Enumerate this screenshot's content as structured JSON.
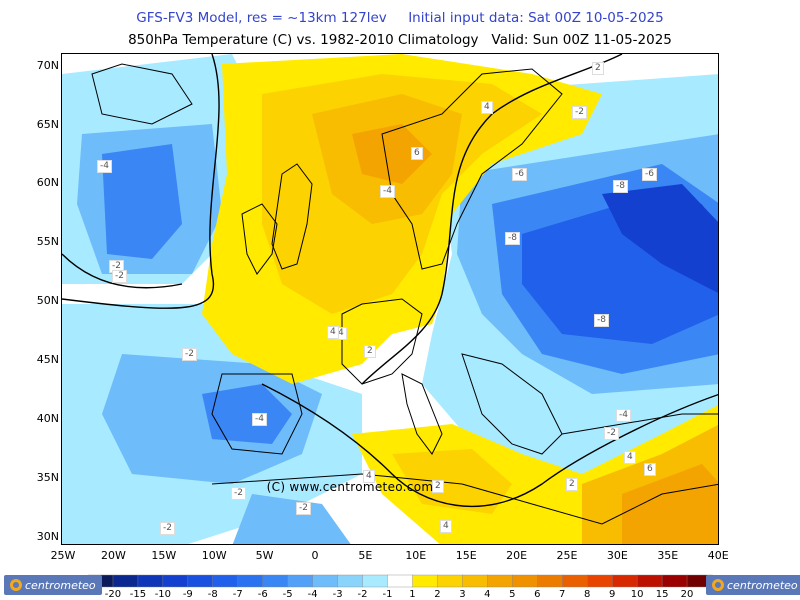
{
  "header": {
    "line1": "GFS-FV3 Model, res = ~13km 127lev     Initial input data: Sat 00Z 10-05-2025",
    "line2": "850hPa Temperature (C) vs. 1982-2010 Climatology   Valid: Sun 00Z 11-05-2025"
  },
  "axes": {
    "lat_labels": [
      "70N",
      "65N",
      "60N",
      "55N",
      "50N",
      "45N",
      "40N",
      "35N",
      "30N"
    ],
    "lon_labels": [
      "25W",
      "20W",
      "15W",
      "10W",
      "5W",
      "0",
      "5E",
      "10E",
      "15E",
      "20E",
      "25E",
      "30E",
      "35E",
      "40E"
    ]
  },
  "copyright": "(C) www.centrometeo.com",
  "contour_labels": [
    "-4",
    "-2",
    "4",
    "6",
    "-6",
    "-8",
    "-6",
    "-4",
    "-2",
    "4",
    "2",
    "-8",
    "-8",
    "-2",
    "-4",
    "4",
    "6",
    "4",
    "2",
    "2",
    "4",
    "-2",
    "-2",
    "-4",
    "-2",
    "-2",
    "4",
    "-2",
    "2"
  ],
  "colorbar": {
    "values": [
      "-20",
      "-15",
      "-10",
      "-9",
      "-8",
      "-7",
      "-6",
      "-5",
      "-4",
      "-3",
      "-2",
      "-1",
      "1",
      "2",
      "3",
      "4",
      "5",
      "6",
      "7",
      "8",
      "9",
      "10",
      "15",
      "20"
    ],
    "colors": [
      "#0a1a5a",
      "#0a2890",
      "#0f35b8",
      "#1440d0",
      "#1a50e0",
      "#2060ea",
      "#2a72f0",
      "#3a86f4",
      "#52a0f8",
      "#6ebcfa",
      "#8ad4fc",
      "#a8eaff",
      "#ffffff",
      "#ffea00",
      "#fcd200",
      "#f8bc00",
      "#f4a400",
      "#f09200",
      "#ec7c00",
      "#ea6000",
      "#e84400",
      "#d82800",
      "#bc1000",
      "#9a0000",
      "#700000"
    ]
  },
  "logos": {
    "left": "centrometeo",
    "right": "centrometeo"
  }
}
